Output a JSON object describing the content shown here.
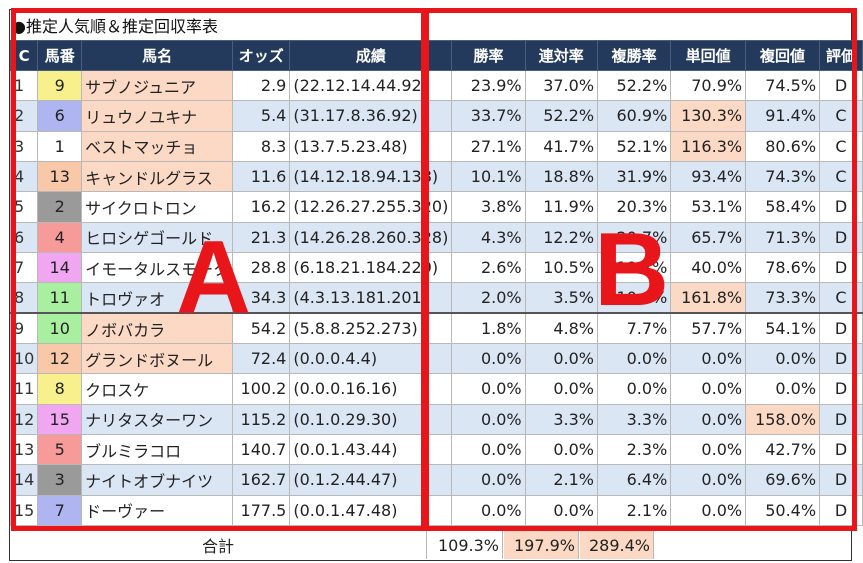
{
  "title": "●推定人気順＆推定回収率表",
  "headers": [
    "C",
    "馬番",
    "馬名",
    "オッズ",
    "成績",
    "勝率",
    "連対率",
    "複勝率",
    "単回値",
    "複回値",
    "評価"
  ],
  "colors": {
    "header_bg": "#233a5c",
    "row_alt": "#dbe6f5",
    "highlight": "#fbd9c4",
    "annotation": "#e8161b"
  },
  "rows": [
    {
      "c": "1",
      "num": "9",
      "num_color": "#f7f08c",
      "name": "サブノジュニア",
      "odds": "2.9",
      "record": "(22.12.14.44.92)",
      "win": "23.9%",
      "place2": "37.0%",
      "place3": "52.2%",
      "win_ret": "70.9%",
      "place_ret": "74.5%",
      "grade": "D"
    },
    {
      "c": "2",
      "num": "6",
      "num_color": "#aeb5f0",
      "name": "リュウノユキナ",
      "odds": "5.4",
      "record": "(31.17.8.36.92)",
      "win": "33.7%",
      "place2": "52.2%",
      "place3": "60.9%",
      "win_ret": "130.3%",
      "place_ret": "91.4%",
      "grade": "C"
    },
    {
      "c": "3",
      "num": "1",
      "num_color": "#ffffff",
      "name": "ベストマッチョ",
      "odds": "8.3",
      "record": "(13.7.5.23.48)",
      "win": "27.1%",
      "place2": "41.7%",
      "place3": "52.1%",
      "win_ret": "116.3%",
      "place_ret": "80.6%",
      "grade": "C"
    },
    {
      "c": "4",
      "num": "13",
      "num_color": "#f9c8a8",
      "name": "キャンドルグラス",
      "odds": "11.6",
      "record": "(14.12.18.94.138)",
      "win": "10.1%",
      "place2": "18.8%",
      "place3": "31.9%",
      "win_ret": "93.4%",
      "place_ret": "74.3%",
      "grade": "C"
    },
    {
      "c": "5",
      "num": "2",
      "num_color": "#9a9a9a",
      "name": "サイクロトロン",
      "odds": "16.2",
      "record": "(12.26.27.255.320)",
      "win": "3.8%",
      "place2": "11.9%",
      "place3": "20.3%",
      "win_ret": "53.1%",
      "place_ret": "58.4%",
      "grade": "D"
    },
    {
      "c": "6",
      "num": "4",
      "num_color": "#f79a9a",
      "name": "ヒロシゲゴールド",
      "odds": "21.3",
      "record": "(14.26.28.260.328)",
      "win": "4.3%",
      "place2": "12.2%",
      "place3": "20.7%",
      "win_ret": "65.7%",
      "place_ret": "71.3%",
      "grade": "D"
    },
    {
      "c": "7",
      "num": "14",
      "num_color": "#f1a6f1",
      "name": "イモータルスモーク",
      "odds": "28.8",
      "record": "(6.18.21.184.229)",
      "win": "2.6%",
      "place2": "10.5%",
      "place3": "19.7%",
      "win_ret": "40.0%",
      "place_ret": "78.6%",
      "grade": "D"
    },
    {
      "c": "8",
      "num": "11",
      "num_color": "#a8f0a0",
      "name": "トロヴァオ",
      "odds": "34.3",
      "record": "(4.3.13.181.201)",
      "win": "2.0%",
      "place2": "3.5%",
      "place3": "10.0%",
      "win_ret": "161.8%",
      "place_ret": "73.3%",
      "grade": "C"
    },
    {
      "c": "9",
      "num": "10",
      "num_color": "#a8f0a0",
      "name": "ノボバカラ",
      "odds": "54.2",
      "record": "(5.8.8.252.273)",
      "win": "1.8%",
      "place2": "4.8%",
      "place3": "7.7%",
      "win_ret": "57.7%",
      "place_ret": "54.1%",
      "grade": "D"
    },
    {
      "c": "10",
      "num": "12",
      "num_color": "#f9c8a8",
      "name": "グランドボヌール",
      "odds": "72.4",
      "record": "(0.0.0.4.4)",
      "win": "0.0%",
      "place2": "0.0%",
      "place3": "0.0%",
      "win_ret": "0.0%",
      "place_ret": "0.0%",
      "grade": "D"
    },
    {
      "c": "11",
      "num": "8",
      "num_color": "#f7f08c",
      "name": "クロスケ",
      "odds": "100.2",
      "record": "(0.0.0.16.16)",
      "win": "0.0%",
      "place2": "0.0%",
      "place3": "0.0%",
      "win_ret": "0.0%",
      "place_ret": "0.0%",
      "grade": "D"
    },
    {
      "c": "12",
      "num": "15",
      "num_color": "#f1a6f1",
      "name": "ナリタスターワン",
      "odds": "115.2",
      "record": "(0.1.0.29.30)",
      "win": "0.0%",
      "place2": "3.3%",
      "place3": "3.3%",
      "win_ret": "0.0%",
      "place_ret": "158.0%",
      "grade": "D"
    },
    {
      "c": "13",
      "num": "5",
      "num_color": "#f79a9a",
      "name": "ブルミラコロ",
      "odds": "140.7",
      "record": "(0.0.1.43.44)",
      "win": "0.0%",
      "place2": "0.0%",
      "place3": "2.3%",
      "win_ret": "0.0%",
      "place_ret": "42.7%",
      "grade": "D"
    },
    {
      "c": "14",
      "num": "3",
      "num_color": "#9a9a9a",
      "name": "ナイトオブナイツ",
      "odds": "162.7",
      "record": "(0.1.2.44.47)",
      "win": "0.0%",
      "place2": "2.1%",
      "place3": "6.4%",
      "win_ret": "0.0%",
      "place_ret": "69.6%",
      "grade": "D"
    },
    {
      "c": "15",
      "num": "7",
      "num_color": "#aeb5f0",
      "name": "ドーヴァー",
      "odds": "177.5",
      "record": "(0.0.1.47.48)",
      "win": "0.0%",
      "place2": "0.0%",
      "place3": "2.1%",
      "win_ret": "0.0%",
      "place_ret": "50.4%",
      "grade": "D"
    }
  ],
  "highlights": {
    "name": [
      0,
      1,
      2,
      3,
      8,
      9
    ],
    "win_ret": [
      1,
      2,
      7
    ],
    "place_ret": [
      11
    ]
  },
  "total": {
    "label": "合計",
    "win_ret": "109.3%",
    "place2": "197.9%",
    "place3": "289.4%"
  },
  "annotations": {
    "a": "A",
    "b": "B"
  }
}
